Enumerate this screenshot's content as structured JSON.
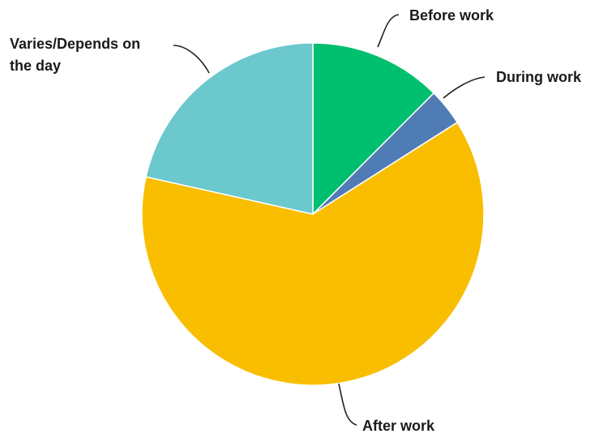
{
  "chart_data": {
    "type": "pie",
    "start_angle_deg": 0,
    "direction": "clockwise",
    "slices": [
      {
        "label": "Before work",
        "value": 12.5,
        "color": "#00BF6F"
      },
      {
        "label": "During work",
        "value": 3.5,
        "color": "#507CB6"
      },
      {
        "label": "After work",
        "value": 62.5,
        "color": "#F9BE00"
      },
      {
        "label": "Varies/Depends on the day",
        "value": 21.5,
        "color": "#6BC8CD"
      }
    ]
  }
}
